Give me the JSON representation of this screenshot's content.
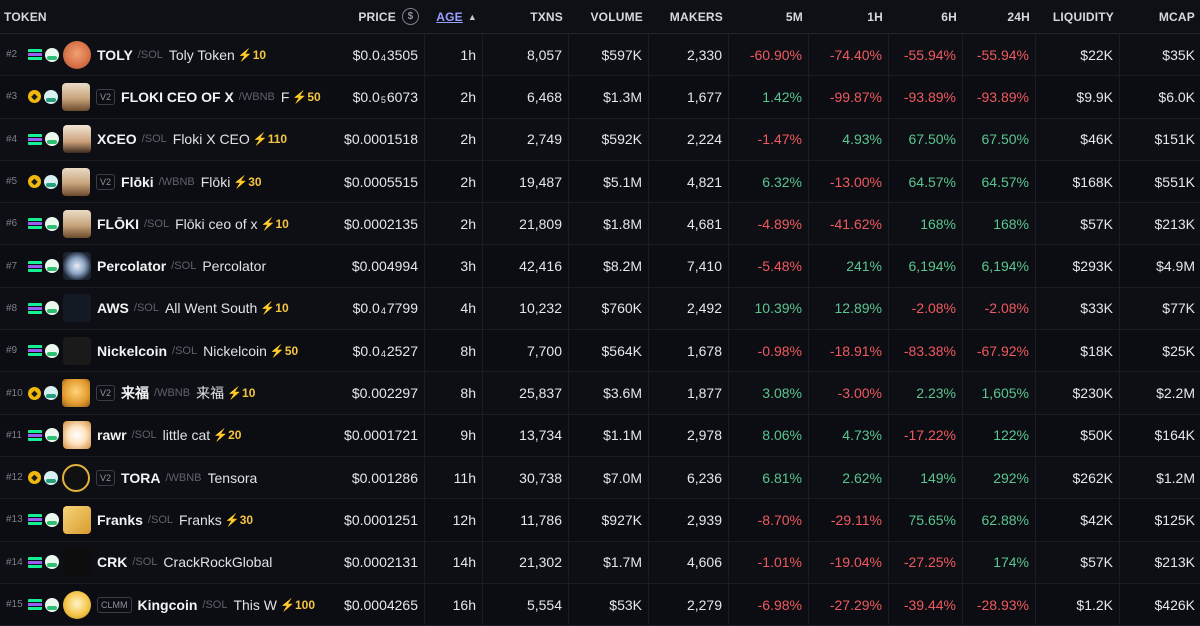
{
  "header": {
    "token": "TOKEN",
    "price": "PRICE",
    "price_icon": "$",
    "age": "AGE",
    "txns": "TXNS",
    "volume": "VOLUME",
    "makers": "MAKERS",
    "m5": "5M",
    "h1": "1H",
    "h6": "6H",
    "h24": "24H",
    "liquidity": "LIQUIDITY",
    "mcap": "MCAP"
  },
  "colors": {
    "positive": "#5ac58f",
    "negative": "#ee5a5f",
    "boost": "#f5c542",
    "sort_link": "#9aa0ff"
  },
  "rows": [
    {
      "rank": "#2",
      "chain": "sol",
      "dex": "pump",
      "avatar": "toly-avatar",
      "version": "",
      "symbol": "TOLY",
      "quote": "/SOL",
      "name": "Toly Token",
      "boost": "⚡10",
      "price_a": "$0.0",
      "price_sub": "4",
      "price_b": "3505",
      "age": "1h",
      "txns": "8,057",
      "volume": "$597K",
      "makers": "2,330",
      "m5": "-60.90%",
      "h1": "-74.40%",
      "h6": "-55.94%",
      "h24": "-55.94%",
      "liquidity": "$22K",
      "mcap": "$35K"
    },
    {
      "rank": "#3",
      "chain": "bnb",
      "dex": "pancake",
      "avatar": "floki-avatar",
      "version": "V2",
      "symbol": "FLOKI CEO OF X",
      "quote": "/WBNB",
      "name": "F",
      "boost": "⚡50",
      "price_a": "$0.0",
      "price_sub": "5",
      "price_b": "6073",
      "age": "2h",
      "txns": "6,468",
      "volume": "$1.3M",
      "makers": "1,677",
      "m5": "1.42%",
      "h1": "-99.87%",
      "h6": "-93.89%",
      "h24": "-93.89%",
      "liquidity": "$9.9K",
      "mcap": "$6.0K"
    },
    {
      "rank": "#4",
      "chain": "sol",
      "dex": "pump",
      "avatar": "xceo-avatar",
      "version": "",
      "symbol": "XCEO",
      "quote": "/SOL",
      "name": "Floki X CEO",
      "boost": "⚡110",
      "price_a": "$0.0001518",
      "price_sub": "",
      "price_b": "",
      "age": "2h",
      "txns": "2,749",
      "volume": "$592K",
      "makers": "2,224",
      "m5": "-1.47%",
      "h1": "4.93%",
      "h6": "67.50%",
      "h24": "67.50%",
      "liquidity": "$46K",
      "mcap": "$151K"
    },
    {
      "rank": "#5",
      "chain": "bnb",
      "dex": "pancake",
      "avatar": "floki-avatar",
      "version": "V2",
      "symbol": "Flōki",
      "quote": "/WBNB",
      "name": "Flōki",
      "boost": "⚡30",
      "price_a": "$0.0005515",
      "price_sub": "",
      "price_b": "",
      "age": "2h",
      "txns": "19,487",
      "volume": "$5.1M",
      "makers": "4,821",
      "m5": "6.32%",
      "h1": "-13.00%",
      "h6": "64.57%",
      "h24": "64.57%",
      "liquidity": "$168K",
      "mcap": "$551K"
    },
    {
      "rank": "#6",
      "chain": "sol",
      "dex": "pump",
      "avatar": "floki-avatar",
      "version": "",
      "symbol": "FLŌKI",
      "quote": "/SOL",
      "name": "Flōki ceo of x",
      "boost": "⚡10",
      "price_a": "$0.0002135",
      "price_sub": "",
      "price_b": "",
      "age": "2h",
      "txns": "21,809",
      "volume": "$1.8M",
      "makers": "4,681",
      "m5": "-4.89%",
      "h1": "-41.62%",
      "h6": "168%",
      "h24": "168%",
      "liquidity": "$57K",
      "mcap": "$213K"
    },
    {
      "rank": "#7",
      "chain": "sol",
      "dex": "pump",
      "avatar": "percolator-avatar",
      "version": "",
      "symbol": "Percolator",
      "quote": "/SOL",
      "name": "Percolator",
      "boost": "",
      "price_a": "$0.004994",
      "price_sub": "",
      "price_b": "",
      "age": "3h",
      "txns": "42,416",
      "volume": "$8.2M",
      "makers": "7,410",
      "m5": "-5.48%",
      "h1": "241%",
      "h6": "6,194%",
      "h24": "6,194%",
      "liquidity": "$293K",
      "mcap": "$4.9M"
    },
    {
      "rank": "#8",
      "chain": "sol",
      "dex": "pump",
      "avatar": "aws-avatar",
      "version": "",
      "symbol": "AWS",
      "quote": "/SOL",
      "name": "All Went South",
      "boost": "⚡10",
      "price_a": "$0.0",
      "price_sub": "4",
      "price_b": "7799",
      "age": "4h",
      "txns": "10,232",
      "volume": "$760K",
      "makers": "2,492",
      "m5": "10.39%",
      "h1": "12.89%",
      "h6": "-2.08%",
      "h24": "-2.08%",
      "liquidity": "$33K",
      "mcap": "$77K"
    },
    {
      "rank": "#9",
      "chain": "sol",
      "dex": "pump",
      "avatar": "nickelcoin-avatar",
      "version": "",
      "symbol": "Nickelcoin",
      "quote": "/SOL",
      "name": "Nickelcoin",
      "boost": "⚡50",
      "price_a": "$0.0",
      "price_sub": "4",
      "price_b": "2527",
      "age": "8h",
      "txns": "7,700",
      "volume": "$564K",
      "makers": "1,678",
      "m5": "-0.98%",
      "h1": "-18.91%",
      "h6": "-83.38%",
      "h24": "-67.92%",
      "liquidity": "$18K",
      "mcap": "$25K"
    },
    {
      "rank": "#10",
      "chain": "bnb",
      "dex": "pancake",
      "avatar": "laifu-avatar",
      "version": "V2",
      "symbol": "来福",
      "quote": "/WBNB",
      "name": "来福",
      "boost": "⚡10",
      "price_a": "$0.002297",
      "price_sub": "",
      "price_b": "",
      "age": "8h",
      "txns": "25,837",
      "volume": "$3.6M",
      "makers": "1,877",
      "m5": "3.08%",
      "h1": "-3.00%",
      "h6": "2.23%",
      "h24": "1,605%",
      "liquidity": "$230K",
      "mcap": "$2.2M"
    },
    {
      "rank": "#11",
      "chain": "sol",
      "dex": "pump",
      "avatar": "rawr-avatar",
      "version": "",
      "symbol": "rawr",
      "quote": "/SOL",
      "name": "little cat",
      "boost": "⚡20",
      "price_a": "$0.0001721",
      "price_sub": "",
      "price_b": "",
      "age": "9h",
      "txns": "13,734",
      "volume": "$1.1M",
      "makers": "2,978",
      "m5": "8.06%",
      "h1": "4.73%",
      "h6": "-17.22%",
      "h24": "122%",
      "liquidity": "$50K",
      "mcap": "$164K"
    },
    {
      "rank": "#12",
      "chain": "bnb",
      "dex": "pancake",
      "avatar": "tora-avatar",
      "version": "V2",
      "symbol": "TORA",
      "quote": "/WBNB",
      "name": "Tensora",
      "boost": "",
      "price_a": "$0.001286",
      "price_sub": "",
      "price_b": "",
      "age": "11h",
      "txns": "30,738",
      "volume": "$7.0M",
      "makers": "6,236",
      "m5": "6.81%",
      "h1": "2.62%",
      "h6": "149%",
      "h24": "292%",
      "liquidity": "$262K",
      "mcap": "$1.2M"
    },
    {
      "rank": "#13",
      "chain": "sol",
      "dex": "pump",
      "avatar": "franks-avatar",
      "version": "",
      "symbol": "Franks",
      "quote": "/SOL",
      "name": "Franks",
      "boost": "⚡30",
      "price_a": "$0.0001251",
      "price_sub": "",
      "price_b": "",
      "age": "12h",
      "txns": "11,786",
      "volume": "$927K",
      "makers": "2,939",
      "m5": "-8.70%",
      "h1": "-29.11%",
      "h6": "75.65%",
      "h24": "62.88%",
      "liquidity": "$42K",
      "mcap": "$125K"
    },
    {
      "rank": "#14",
      "chain": "sol",
      "dex": "pump",
      "avatar": "crackrock-avatar",
      "version": "",
      "symbol": "CRK",
      "quote": "/SOL",
      "name": "CrackRockGlobal",
      "boost": "",
      "price_a": "$0.0002131",
      "price_sub": "",
      "price_b": "",
      "age": "14h",
      "txns": "21,302",
      "volume": "$1.7M",
      "makers": "4,606",
      "m5": "-1.01%",
      "h1": "-19.04%",
      "h6": "-27.25%",
      "h24": "174%",
      "liquidity": "$57K",
      "mcap": "$213K"
    },
    {
      "rank": "#15",
      "chain": "sol",
      "dex": "base",
      "avatar": "kingcoin-avatar",
      "version": "CLMM",
      "symbol": "Kingcoin",
      "quote": "/SOL",
      "name": "This W",
      "boost": "⚡100",
      "price_a": "$0.0004265",
      "price_sub": "",
      "price_b": "",
      "age": "16h",
      "txns": "5,554",
      "volume": "$53K",
      "makers": "2,279",
      "m5": "-6.98%",
      "h1": "-27.29%",
      "h6": "-39.44%",
      "h24": "-28.93%",
      "liquidity": "$1.2K",
      "mcap": "$426K"
    }
  ]
}
